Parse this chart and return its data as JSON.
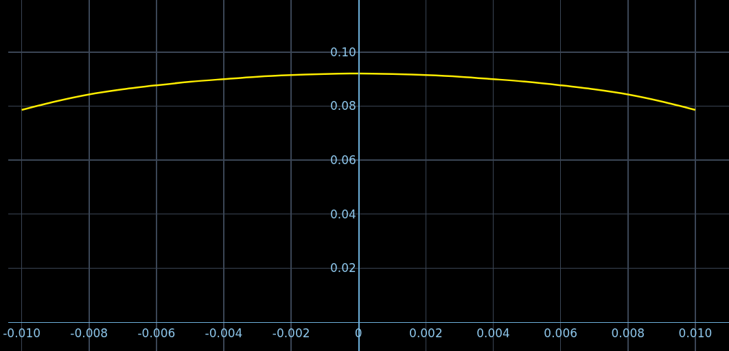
{
  "chart_data": {
    "type": "line",
    "x": [
      -0.01,
      -0.009,
      -0.008,
      -0.007,
      -0.006,
      -0.005,
      -0.004,
      -0.003,
      -0.002,
      -0.001,
      0,
      0.001,
      0.002,
      0.003,
      0.004,
      0.005,
      0.006,
      0.007,
      0.008,
      0.009,
      0.01
    ],
    "series": [
      {
        "color": "#ffee00",
        "values": [
          0.0786,
          0.0817,
          0.0843,
          0.0862,
          0.0877,
          0.089,
          0.09,
          0.0909,
          0.0915,
          0.0919,
          0.0921,
          0.0919,
          0.0915,
          0.0909,
          0.09,
          0.089,
          0.0877,
          0.0862,
          0.0843,
          0.0817,
          0.0786
        ]
      }
    ],
    "xlim": [
      -0.0104,
      0.011
    ],
    "ylim": [
      -0.0107,
      0.1193
    ],
    "xticks": [
      {
        "value": -0.01,
        "label": "-0.010"
      },
      {
        "value": -0.008,
        "label": "-0.008"
      },
      {
        "value": -0.006,
        "label": "-0.006"
      },
      {
        "value": -0.004,
        "label": "-0.004"
      },
      {
        "value": -0.002,
        "label": "-0.002"
      },
      0,
      {
        "value": 0.002,
        "label": "0.002"
      },
      {
        "value": 0.004,
        "label": "0.004"
      },
      {
        "value": 0.006,
        "label": "0.006"
      },
      {
        "value": 0.008,
        "label": "0.008"
      },
      {
        "value": 0.01,
        "label": "0.010"
      }
    ],
    "yticks": [
      0.02,
      0.04,
      0.06,
      0.08,
      {
        "value": 0.1,
        "label": "0.10"
      }
    ],
    "grid": true,
    "marker": "none",
    "line_style": "solid"
  }
}
